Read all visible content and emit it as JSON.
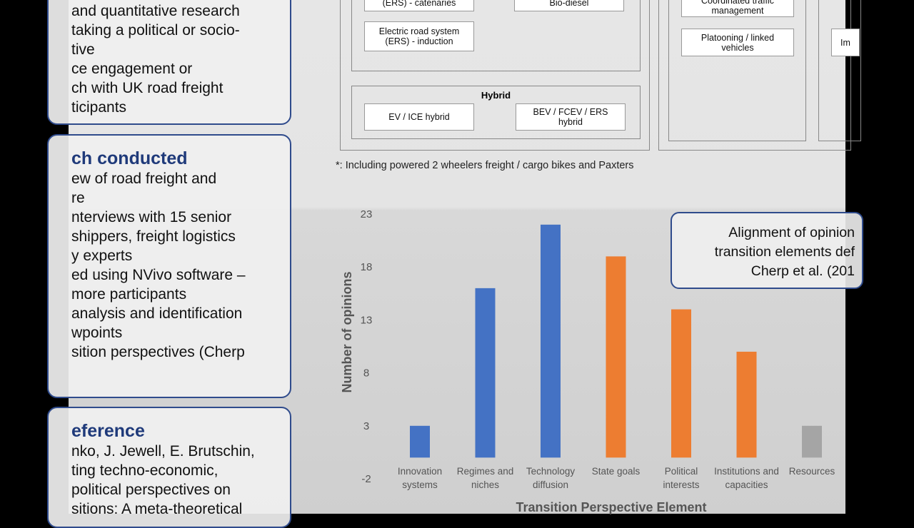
{
  "left_panels": [
    {
      "lines": [
        "and quantitative research",
        "taking a political or socio-",
        "tive",
        "ce engagement or",
        "ch with UK road freight",
        "ticipants"
      ]
    },
    {
      "heading": "ch conducted",
      "lines": [
        "ew of road freight and",
        "re",
        "nterviews with 15 senior",
        "shippers, freight logistics",
        "y experts",
        "ed using NVivo software –",
        "more participants",
        "analysis and identification",
        "wpoints",
        "sition perspectives (Cherp"
      ]
    },
    {
      "heading": "eference",
      "lines": [
        "nko, J. Jewell, E. Brutschin,",
        "ting techno-economic,",
        "political perspectives on",
        "sitions: A meta-theoretical"
      ]
    }
  ],
  "diagram": {
    "ers_catenaries": "(ERS) - catenaries",
    "ers_induction": "Electric road system (ERS) - induction",
    "hybrid_title": "Hybrid",
    "ev_ice": "EV / ICE hybrid",
    "bev_fcev": "BEV / FCEV / ERS hybrid",
    "bio_diesel": "Bio-diesel",
    "traffic": "Coordinated traffic management",
    "platooning": "Platooning / linked vehicles",
    "cut": "Im"
  },
  "footnote": "*: Including powered 2 wheelers freight / cargo bikes and Paxters",
  "annotation": [
    "Alignment of opinion",
    "transition elements def",
    "Cherp et al. (201"
  ],
  "chart_data": {
    "type": "bar",
    "y_label": "Number of opinions",
    "x_label": "Transition Perspective Element",
    "categories": [
      "Innovation systems",
      "Regimes and niches",
      "Technology diffusion",
      "State goals",
      "Political interests",
      "Institutions and capacities",
      "Resources"
    ],
    "values": [
      3,
      16,
      22,
      19,
      14,
      10,
      3
    ],
    "colors": [
      "#4472c4",
      "#4472c4",
      "#4472c4",
      "#ed7d31",
      "#ed7d31",
      "#ed7d31",
      "#a5a5a5"
    ],
    "ylim": [
      -2,
      23
    ],
    "yticks": [
      23,
      18,
      13,
      8,
      3,
      -2
    ]
  }
}
